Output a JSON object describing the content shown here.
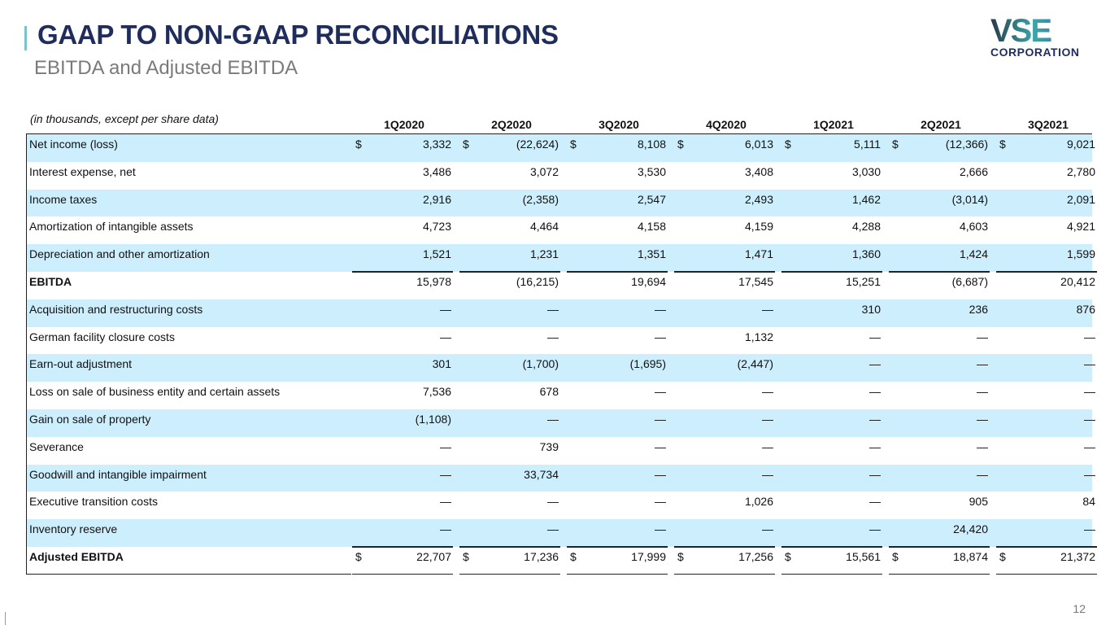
{
  "header": {
    "title": "GAAP TO NON-GAAP RECONCILIATIONS",
    "subtitle": "EBITDA and Adjusted EBITDA"
  },
  "logo": {
    "mark": "VSE",
    "text": "CORPORATION"
  },
  "table": {
    "units_note": "(in thousands, except per share data)",
    "columns": [
      "1Q2020",
      "2Q2020",
      "3Q2020",
      "4Q2020",
      "1Q2021",
      "2Q2021",
      "3Q2021"
    ],
    "rows": [
      {
        "label": "Net income (loss)",
        "dollar": true,
        "values": [
          "3,332",
          "(22,624)",
          "8,108",
          "6,013",
          "5,111",
          "(12,366)",
          "9,021"
        ]
      },
      {
        "label": "Interest expense, net",
        "values": [
          "3,486",
          "3,072",
          "3,530",
          "3,408",
          "3,030",
          "2,666",
          "2,780"
        ]
      },
      {
        "label": "Income taxes",
        "values": [
          "2,916",
          "(2,358)",
          "2,547",
          "2,493",
          "1,462",
          "(3,014)",
          "2,091"
        ]
      },
      {
        "label": "Amortization of intangible assets",
        "values": [
          "4,723",
          "4,464",
          "4,158",
          "4,159",
          "4,288",
          "4,603",
          "4,921"
        ]
      },
      {
        "label": "Depreciation and other amortization",
        "values": [
          "1,521",
          "1,231",
          "1,351",
          "1,471",
          "1,360",
          "1,424",
          "1,599"
        ]
      },
      {
        "label": "EBITDA",
        "bold": true,
        "values": [
          "15,978",
          "(16,215)",
          "19,694",
          "17,545",
          "15,251",
          "(6,687)",
          "20,412"
        ]
      },
      {
        "label": "Acquisition and restructuring costs",
        "values": [
          "—",
          "—",
          "—",
          "—",
          "310",
          "236",
          "876"
        ]
      },
      {
        "label": "German facility closure costs",
        "values": [
          "—",
          "—",
          "—",
          "1,132",
          "—",
          "—",
          "—"
        ]
      },
      {
        "label": "Earn-out adjustment",
        "values": [
          "301",
          "(1,700)",
          "(1,695)",
          "(2,447)",
          "—",
          "—",
          "—"
        ]
      },
      {
        "label": "Loss on sale of business entity and certain assets",
        "values": [
          "7,536",
          "678",
          "—",
          "—",
          "—",
          "—",
          "—"
        ]
      },
      {
        "label": "Gain on sale of property",
        "values": [
          "(1,108)",
          "—",
          "—",
          "—",
          "—",
          "—",
          "—"
        ]
      },
      {
        "label": "Severance",
        "values": [
          "—",
          "739",
          "—",
          "—",
          "—",
          "—",
          "—"
        ]
      },
      {
        "label": "Goodwill and intangible impairment",
        "values": [
          "—",
          "33,734",
          "—",
          "—",
          "—",
          "—",
          "—"
        ]
      },
      {
        "label": "Executive transition costs",
        "values": [
          "—",
          "—",
          "—",
          "1,026",
          "—",
          "905",
          "84"
        ]
      },
      {
        "label": "Inventory reserve",
        "values": [
          "—",
          "—",
          "—",
          "—",
          "—",
          "24,420",
          "—"
        ]
      },
      {
        "label": "Adjusted EBITDA",
        "bold": true,
        "dollar": true,
        "values": [
          "22,707",
          "17,236",
          "17,999",
          "17,256",
          "15,561",
          "18,874",
          "21,372"
        ]
      }
    ]
  },
  "footer": {
    "page_number": "12"
  },
  "colors": {
    "title": "#1f2d5c",
    "stripe": "#cdeefd",
    "accent": "#7cc4cc"
  }
}
